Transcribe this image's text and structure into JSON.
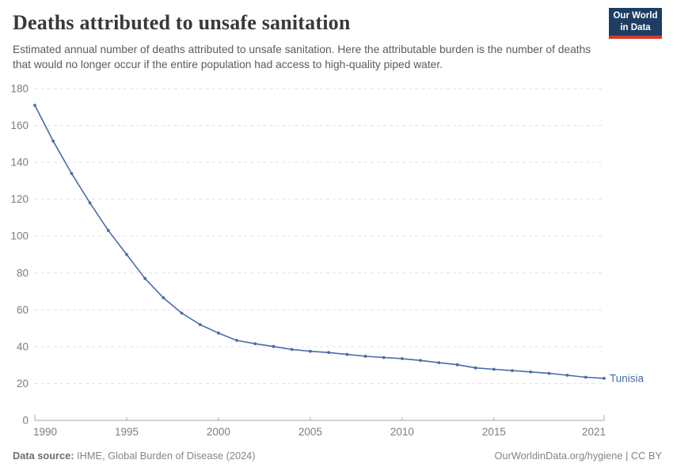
{
  "header": {
    "title": "Deaths attributed to unsafe sanitation",
    "subtitle": "Estimated annual number of deaths attributed to unsafe sanitation. Here the attributable burden is the number of deaths that would no longer occur if the entire population had access to high-quality piped water.",
    "logo": {
      "line1": "Our World",
      "line2": "in Data",
      "bg_color": "#1d3d63",
      "accent_color": "#d4382a"
    }
  },
  "chart_data": {
    "type": "line",
    "title": "Deaths attributed to unsafe sanitation",
    "xlabel": "",
    "ylabel": "",
    "xlim": [
      1990,
      2021
    ],
    "ylim": [
      0,
      180
    ],
    "x_ticks": [
      1990,
      1995,
      2000,
      2005,
      2010,
      2015,
      2021
    ],
    "y_ticks": [
      0,
      20,
      40,
      60,
      80,
      100,
      120,
      140,
      160,
      180
    ],
    "grid": "horizontal-dashed",
    "grid_color": "#e2e2e2",
    "axis_line_color": "#a8a8a8",
    "axis_label_color": "#7d7d7d",
    "series": [
      {
        "name": "Tunisia",
        "color": "#4a6ba5",
        "x": [
          1990,
          1991,
          1992,
          1993,
          1994,
          1995,
          1996,
          1997,
          1998,
          1999,
          2000,
          2001,
          2002,
          2003,
          2004,
          2005,
          2006,
          2007,
          2008,
          2009,
          2010,
          2011,
          2012,
          2013,
          2014,
          2015,
          2016,
          2017,
          2018,
          2019,
          2020,
          2021
        ],
        "values": [
          171,
          151.5,
          134,
          118,
          103,
          90,
          77,
          66.5,
          58.2,
          52,
          47.4,
          43.4,
          41.6,
          40.1,
          38.5,
          37.5,
          36.8,
          35.8,
          34.8,
          34.1,
          33.5,
          32.5,
          31.3,
          30.2,
          28.5,
          27.7,
          27.0,
          26.3,
          25.5,
          24.5,
          23.4,
          22.8
        ]
      }
    ]
  },
  "footer": {
    "source_label": "Data source:",
    "source_text": " IHME, Global Burden of Disease (2024)",
    "right_text": "OurWorldinData.org/hygiene | CC BY"
  }
}
